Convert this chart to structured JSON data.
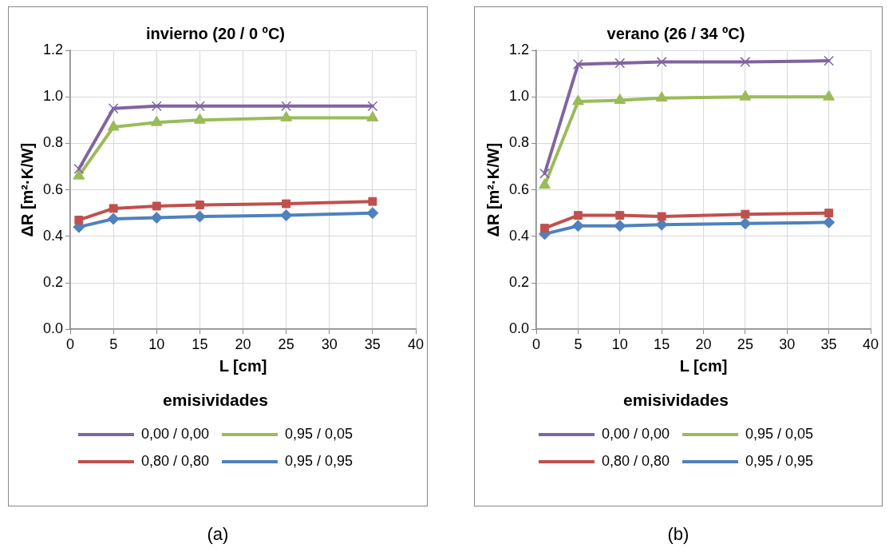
{
  "chart_data": [
    {
      "type": "line",
      "title": "invierno (20 / 0 ºC)",
      "xlabel": "L [cm]",
      "ylabel": "ΔR [m²·K/W]",
      "legend_title": "emisividades",
      "legend": "bottom",
      "grid": true,
      "line_style": "solid",
      "annotations": [
        "(a)"
      ],
      "x": [
        1,
        5,
        10,
        15,
        25,
        35
      ],
      "xlim": [
        0,
        40
      ],
      "xticks": [
        0,
        5,
        10,
        15,
        20,
        25,
        30,
        35,
        40
      ],
      "ylim": [
        0,
        1.2
      ],
      "yticks": [
        {
          "value": 0,
          "label": "0.0"
        },
        {
          "value": 0.2,
          "label": "0.2"
        },
        {
          "value": 0.4,
          "label": "0.4"
        },
        {
          "value": 0.6,
          "label": "0.6"
        },
        {
          "value": 0.8,
          "label": "0.8"
        },
        {
          "value": 1,
          "label": "1.0"
        },
        {
          "value": 1.2,
          "label": "1.2"
        }
      ],
      "series": [
        {
          "name": "0,00 / 0,00",
          "color": "#8064a2",
          "marker": "cross",
          "values": [
            0.69,
            0.95,
            0.96,
            0.96,
            0.96,
            0.96
          ]
        },
        {
          "name": "0,95 / 0,05",
          "color": "#9bbb59",
          "marker": "triangle",
          "values": [
            0.66,
            0.87,
            0.89,
            0.9,
            0.91,
            0.91
          ]
        },
        {
          "name": "0,80 / 0,80",
          "color": "#c0504d",
          "marker": "square",
          "values": [
            0.47,
            0.52,
            0.53,
            0.535,
            0.54,
            0.55
          ]
        },
        {
          "name": "0,95 / 0,95",
          "color": "#4f81bd",
          "marker": "diamond",
          "values": [
            0.44,
            0.475,
            0.48,
            0.485,
            0.49,
            0.5
          ]
        }
      ]
    },
    {
      "type": "line",
      "title": "verano (26 / 34 ºC)",
      "xlabel": "L [cm]",
      "ylabel": "ΔR [m²·K/W]",
      "legend_title": "emisividades",
      "legend": "bottom",
      "grid": true,
      "line_style": "solid",
      "annotations": [
        "(b)"
      ],
      "x": [
        1,
        5,
        10,
        15,
        25,
        35
      ],
      "xlim": [
        0,
        40
      ],
      "xticks": [
        0,
        5,
        10,
        15,
        20,
        25,
        30,
        35,
        40
      ],
      "ylim": [
        0,
        1.2
      ],
      "yticks": [
        {
          "value": 0,
          "label": "0.0"
        },
        {
          "value": 0.2,
          "label": "0.2"
        },
        {
          "value": 0.4,
          "label": "0.4"
        },
        {
          "value": 0.6,
          "label": "0.6"
        },
        {
          "value": 0.8,
          "label": "0.8"
        },
        {
          "value": 1,
          "label": "1.0"
        },
        {
          "value": 1.2,
          "label": "1.2"
        }
      ],
      "series": [
        {
          "name": "0,00 / 0,00",
          "color": "#8064a2",
          "marker": "cross",
          "values": [
            0.67,
            1.14,
            1.145,
            1.15,
            1.15,
            1.155
          ]
        },
        {
          "name": "0,95 / 0,05",
          "color": "#9bbb59",
          "marker": "triangle",
          "values": [
            0.62,
            0.98,
            0.985,
            0.995,
            1.0,
            1.0
          ]
        },
        {
          "name": "0,80 / 0,80",
          "color": "#c0504d",
          "marker": "square",
          "values": [
            0.435,
            0.49,
            0.49,
            0.485,
            0.495,
            0.5
          ]
        },
        {
          "name": "0,95 / 0,95",
          "color": "#4f81bd",
          "marker": "diamond",
          "values": [
            0.41,
            0.445,
            0.445,
            0.45,
            0.455,
            0.46
          ]
        }
      ]
    }
  ]
}
